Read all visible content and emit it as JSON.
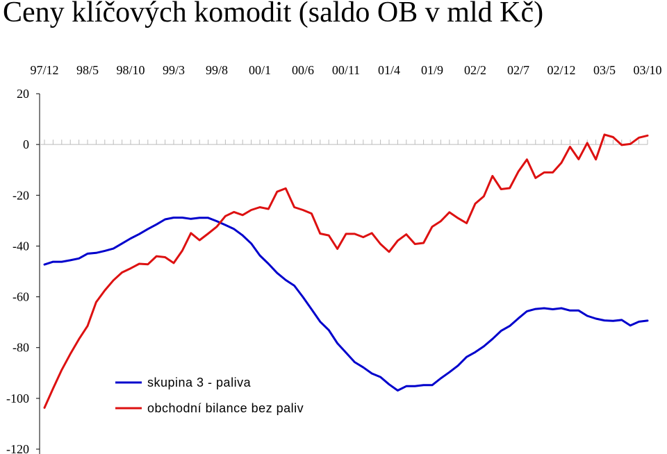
{
  "title": "Ceny klíčových komodit (saldo OB v mld Kč)",
  "chart_data": {
    "type": "line",
    "title": "Ceny klíčových komodit (saldo OB v mld Kč)",
    "x_tick_labels": [
      "97/12",
      "98/5",
      "98/10",
      "99/3",
      "99/8",
      "00/1",
      "00/6",
      "00/11",
      "01/4",
      "01/9",
      "02/2",
      "02/7",
      "02/12",
      "03/5",
      "03/10"
    ],
    "y_tick_labels": [
      "20",
      "0",
      "-20",
      "-40",
      "-60",
      "-80",
      "-100",
      "-120"
    ],
    "y_ticks": [
      20,
      0,
      -20,
      -40,
      -60,
      -80,
      -100,
      -120
    ],
    "ylim": [
      -120,
      20
    ],
    "xlim": [
      0,
      70
    ],
    "x_tick_positions": [
      0,
      5,
      10,
      15,
      20,
      25,
      30,
      35,
      40,
      45,
      50,
      55,
      60,
      65,
      70
    ],
    "x_axis_crosses_at": 0,
    "x_axis_labels_position": "top",
    "grid": false,
    "legend_position": "bottom-left",
    "series": [
      {
        "name": "skupina 3 - paliva",
        "color": "#0000cc",
        "values": [
          -47.3,
          -46.2,
          -46.2,
          -45.6,
          -44.9,
          -43.0,
          -42.7,
          -41.9,
          -41.0,
          -39.0,
          -37.0,
          -35.3,
          -33.3,
          -31.5,
          -29.5,
          -28.8,
          -28.8,
          -29.3,
          -28.9,
          -28.9,
          -30.2,
          -31.7,
          -33.3,
          -35.8,
          -39.0,
          -43.7,
          -47.0,
          -50.6,
          -53.4,
          -55.6,
          -60.1,
          -64.9,
          -69.8,
          -73.1,
          -78.3,
          -82.0,
          -85.7,
          -87.8,
          -90.2,
          -91.6,
          -94.5,
          -96.9,
          -95.2,
          -95.2,
          -94.8,
          -94.8,
          -92.1,
          -89.7,
          -87.1,
          -83.7,
          -81.8,
          -79.5,
          -76.6,
          -73.4,
          -71.5,
          -68.5,
          -65.7,
          -64.8,
          -64.5,
          -64.9,
          -64.5,
          -65.4,
          -65.4,
          -67.5,
          -68.6,
          -69.3,
          -69.5,
          -69.1,
          -71.3,
          -69.8,
          -69.4
        ]
      },
      {
        "name": "obchodní bilance bez paliv",
        "color": "#dd1111",
        "values": [
          -103.7,
          -96.1,
          -88.8,
          -82.5,
          -76.7,
          -71.5,
          -62.1,
          -57.5,
          -53.5,
          -50.4,
          -48.8,
          -47.0,
          -47.2,
          -44.0,
          -44.4,
          -46.7,
          -41.8,
          -34.9,
          -37.7,
          -35.1,
          -32.4,
          -28.2,
          -26.6,
          -27.8,
          -25.8,
          -24.7,
          -25.4,
          -18.6,
          -17.3,
          -24.7,
          -25.8,
          -27.2,
          -35.1,
          -35.8,
          -41.1,
          -35.2,
          -35.2,
          -36.5,
          -34.9,
          -39.2,
          -42.3,
          -37.9,
          -35.4,
          -39.2,
          -38.8,
          -32.4,
          -30.2,
          -26.7,
          -29.0,
          -31.0,
          -23.3,
          -20.4,
          -12.4,
          -17.6,
          -17.2,
          -10.7,
          -5.9,
          -13.2,
          -11.0,
          -11.0,
          -7.2,
          -0.9,
          -5.8,
          0.6,
          -5.9,
          3.9,
          2.9,
          -0.2,
          0.2,
          2.7,
          3.5
        ]
      }
    ]
  }
}
